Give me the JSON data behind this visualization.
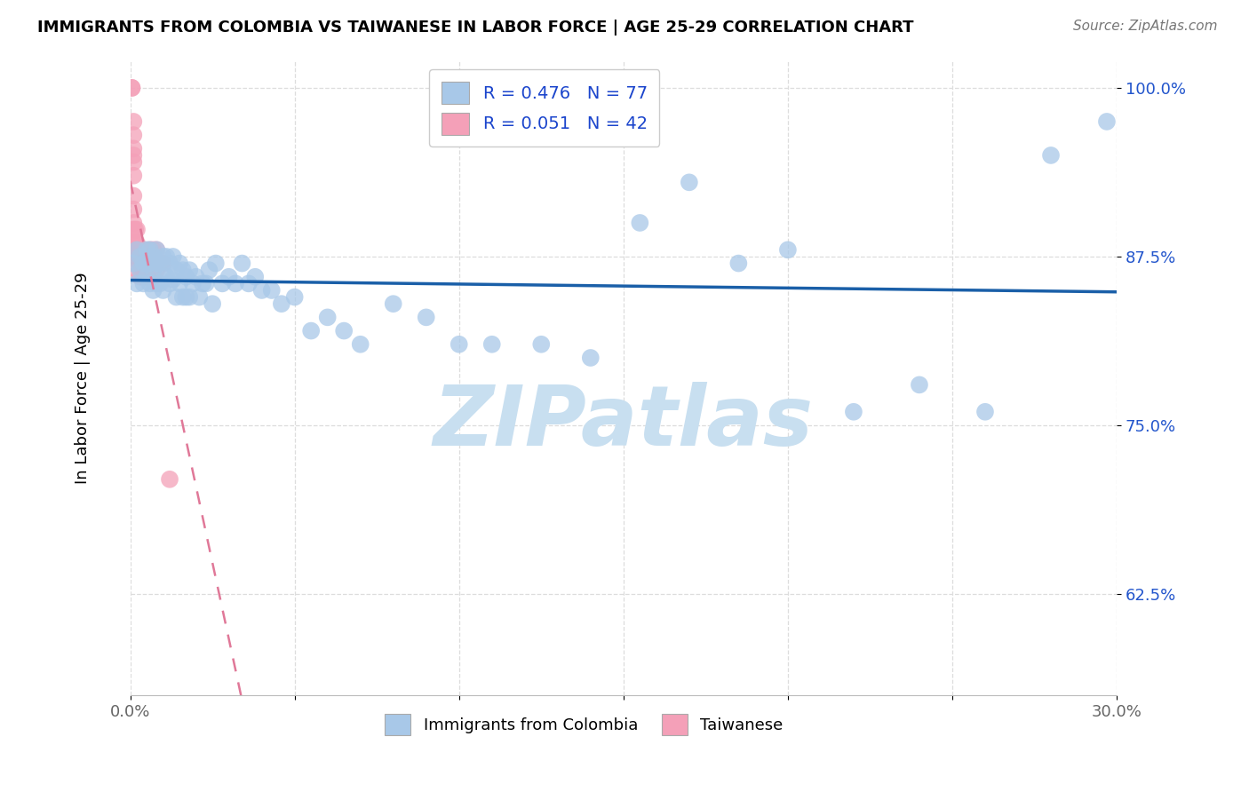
{
  "title": "IMMIGRANTS FROM COLOMBIA VS TAIWANESE IN LABOR FORCE | AGE 25-29 CORRELATION CHART",
  "source": "Source: ZipAtlas.com",
  "ylabel_label": "In Labor Force | Age 25-29",
  "xlim": [
    0.0,
    0.3
  ],
  "ylim": [
    0.55,
    1.02
  ],
  "xticks": [
    0.0,
    0.05,
    0.1,
    0.15,
    0.2,
    0.25,
    0.3
  ],
  "xticklabels": [
    "0.0%",
    "",
    "",
    "",
    "",
    "",
    "30.0%"
  ],
  "yticks": [
    0.625,
    0.75,
    0.875,
    1.0
  ],
  "yticklabels": [
    "62.5%",
    "75.0%",
    "87.5%",
    "100.0%"
  ],
  "colombia_R": 0.476,
  "colombia_N": 77,
  "taiwanese_R": 0.051,
  "taiwanese_N": 42,
  "colombia_color": "#a8c8e8",
  "taiwanese_color": "#f4a0b8",
  "trend_colombia_color": "#1a5fa8",
  "trend_taiwanese_color": "#e07898",
  "colombia_x": [
    0.001,
    0.002,
    0.002,
    0.003,
    0.003,
    0.004,
    0.004,
    0.005,
    0.005,
    0.005,
    0.006,
    0.006,
    0.006,
    0.007,
    0.007,
    0.007,
    0.008,
    0.008,
    0.008,
    0.009,
    0.009,
    0.01,
    0.01,
    0.01,
    0.011,
    0.011,
    0.012,
    0.012,
    0.013,
    0.013,
    0.014,
    0.014,
    0.015,
    0.015,
    0.016,
    0.016,
    0.017,
    0.017,
    0.018,
    0.018,
    0.019,
    0.02,
    0.021,
    0.022,
    0.023,
    0.024,
    0.025,
    0.026,
    0.028,
    0.03,
    0.032,
    0.034,
    0.036,
    0.038,
    0.04,
    0.043,
    0.046,
    0.05,
    0.055,
    0.06,
    0.065,
    0.07,
    0.08,
    0.09,
    0.1,
    0.11,
    0.125,
    0.14,
    0.155,
    0.17,
    0.185,
    0.2,
    0.22,
    0.24,
    0.26,
    0.28,
    0.297
  ],
  "colombia_y": [
    0.87,
    0.88,
    0.855,
    0.875,
    0.865,
    0.87,
    0.855,
    0.88,
    0.87,
    0.86,
    0.88,
    0.87,
    0.855,
    0.875,
    0.865,
    0.85,
    0.88,
    0.87,
    0.855,
    0.87,
    0.855,
    0.875,
    0.865,
    0.85,
    0.875,
    0.86,
    0.87,
    0.855,
    0.875,
    0.858,
    0.865,
    0.845,
    0.87,
    0.855,
    0.865,
    0.845,
    0.86,
    0.845,
    0.865,
    0.845,
    0.855,
    0.86,
    0.845,
    0.855,
    0.855,
    0.865,
    0.84,
    0.87,
    0.855,
    0.86,
    0.855,
    0.87,
    0.855,
    0.86,
    0.85,
    0.85,
    0.84,
    0.845,
    0.82,
    0.83,
    0.82,
    0.81,
    0.84,
    0.83,
    0.81,
    0.81,
    0.81,
    0.8,
    0.9,
    0.93,
    0.87,
    0.88,
    0.76,
    0.78,
    0.76,
    0.95,
    0.975
  ],
  "taiwanese_x": [
    0.0005,
    0.0005,
    0.001,
    0.001,
    0.001,
    0.001,
    0.001,
    0.001,
    0.001,
    0.001,
    0.001,
    0.001,
    0.001,
    0.0015,
    0.0015,
    0.0015,
    0.002,
    0.002,
    0.002,
    0.002,
    0.002,
    0.003,
    0.003,
    0.003,
    0.003,
    0.004,
    0.004,
    0.004,
    0.004,
    0.005,
    0.005,
    0.005,
    0.006,
    0.006,
    0.007,
    0.007,
    0.007,
    0.008,
    0.008,
    0.009,
    0.01,
    0.012
  ],
  "taiwanese_y": [
    1.0,
    1.0,
    0.975,
    0.965,
    0.955,
    0.95,
    0.945,
    0.935,
    0.92,
    0.91,
    0.9,
    0.895,
    0.885,
    0.895,
    0.885,
    0.875,
    0.895,
    0.885,
    0.88,
    0.875,
    0.865,
    0.88,
    0.875,
    0.87,
    0.86,
    0.88,
    0.875,
    0.865,
    0.86,
    0.875,
    0.87,
    0.86,
    0.88,
    0.865,
    0.88,
    0.87,
    0.86,
    0.88,
    0.865,
    0.87,
    0.87,
    0.71
  ],
  "watermark_text": "ZIPatlas",
  "watermark_color": "#c8dff0",
  "background_color": "#ffffff",
  "grid_color": "#dddddd"
}
